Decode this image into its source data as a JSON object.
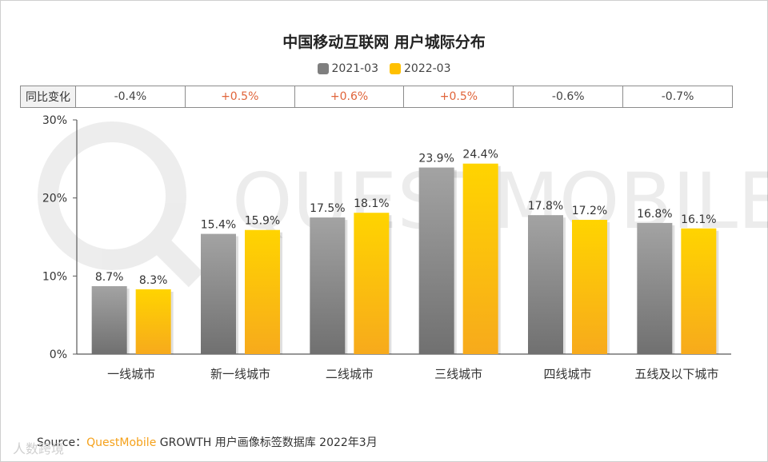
{
  "chart_data": {
    "type": "bar",
    "title": "中国移动互联网 用户城际分布",
    "categories": [
      "一线城市",
      "新一线城市",
      "二线城市",
      "三线城市",
      "四线城市",
      "五线及以下城市"
    ],
    "series": [
      {
        "name": "2021-03",
        "values": [
          8.7,
          15.4,
          17.5,
          23.9,
          17.8,
          16.8
        ],
        "labels": [
          "8.7%",
          "15.4%",
          "17.5%",
          "23.9%",
          "17.8%",
          "16.8%"
        ]
      },
      {
        "name": "2022-03",
        "values": [
          8.3,
          15.9,
          18.1,
          24.4,
          17.2,
          16.1
        ],
        "labels": [
          "8.3%",
          "15.9%",
          "18.1%",
          "24.4%",
          "17.2%",
          "16.1%"
        ]
      }
    ],
    "ylim": [
      0,
      30
    ],
    "yticks": [
      "0%",
      "10%",
      "20%",
      "30%"
    ],
    "ytick_values": [
      0,
      10,
      20,
      30
    ],
    "grid": false,
    "legend": "top-center"
  },
  "legend": [
    {
      "label": "2021-03",
      "color": "#7f7f7f"
    },
    {
      "label": "2022-03",
      "color": "#ffc000"
    }
  ],
  "yoy": {
    "header": "同比变化",
    "values": [
      "-0.4%",
      "+0.5%",
      "+0.6%",
      "+0.5%",
      "-0.6%",
      "-0.7%"
    ]
  },
  "source": {
    "prefix": "Source：",
    "brand": "QuestMobile",
    "text": " GROWTH 用户画像标签数据库 2022年3月"
  },
  "watermark": "QUESTMOBILE",
  "corner_watermark": "人数跨境",
  "colors": {
    "gray_top": "#a3a3a3",
    "gray_bottom": "#707070",
    "gold_top": "#ffd400",
    "gold_bottom": "#f7aa1c",
    "positive": "#e0643a",
    "negative": "#444444"
  }
}
